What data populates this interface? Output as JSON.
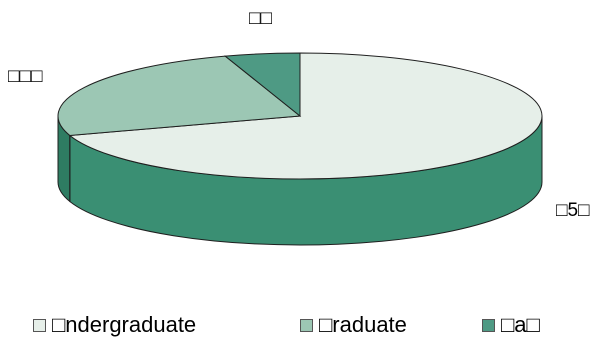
{
  "chart_data": {
    "type": "pie",
    "style": "3d-pie",
    "series": [
      {
        "name": "□ndergraduate",
        "label": "□5□",
        "value": 70,
        "color": "#e6efe9",
        "side_color": "#3a8f73"
      },
      {
        "name": "□raduate",
        "label": "□□□",
        "value": 25,
        "color": "#9cc7b4",
        "side_color": "#2e7c62"
      },
      {
        "name": "□a□",
        "label": "□□",
        "value": 5,
        "color": "#4e9a84",
        "side_color": "#166b52"
      }
    ],
    "legend": "bottom"
  },
  "legend_marks": [
    "□",
    "□",
    "□"
  ]
}
